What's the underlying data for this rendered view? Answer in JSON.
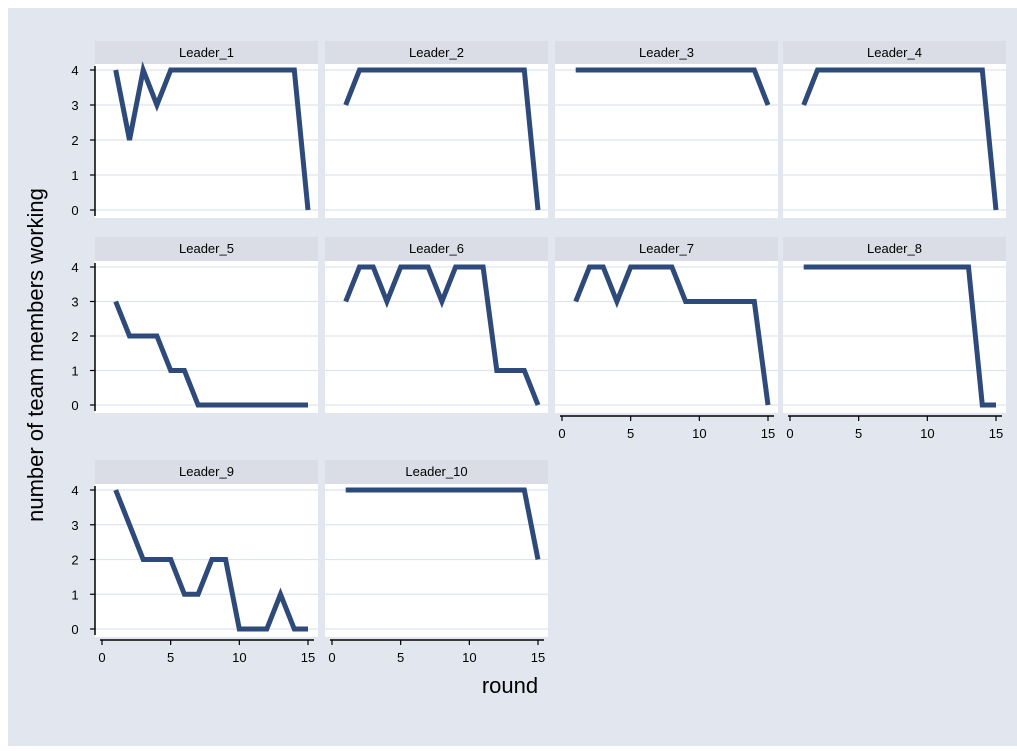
{
  "chart_data": {
    "type": "line",
    "layout": "small-multiples",
    "xlabel": "round",
    "ylabel": "number of team members working",
    "xlim": [
      0,
      15
    ],
    "ylim": [
      0,
      4
    ],
    "xticks": [
      0,
      5,
      10,
      15
    ],
    "yticks": [
      0,
      1,
      2,
      3,
      4
    ],
    "grid": true,
    "colors": {
      "outer_background": "#e1e6ef",
      "panel_background": "#ffffff",
      "strip_background": "#dadde5",
      "gridline": "#dfe4ec",
      "line": "#2e4a7a"
    },
    "panels": [
      {
        "title": "Leader_1",
        "x": [
          1,
          2,
          3,
          4,
          5,
          6,
          7,
          8,
          9,
          10,
          11,
          12,
          13,
          14,
          15
        ],
        "values": [
          4,
          2,
          4,
          3,
          4,
          4,
          4,
          4,
          4,
          4,
          4,
          4,
          4,
          4,
          0
        ]
      },
      {
        "title": "Leader_2",
        "x": [
          1,
          2,
          3,
          4,
          5,
          6,
          7,
          8,
          9,
          10,
          11,
          12,
          13,
          14,
          15
        ],
        "values": [
          3,
          4,
          4,
          4,
          4,
          4,
          4,
          4,
          4,
          4,
          4,
          4,
          4,
          4,
          0
        ]
      },
      {
        "title": "Leader_3",
        "x": [
          1,
          2,
          3,
          4,
          5,
          6,
          7,
          8,
          9,
          10,
          11,
          12,
          13,
          14,
          15
        ],
        "values": [
          4,
          4,
          4,
          4,
          4,
          4,
          4,
          4,
          4,
          4,
          4,
          4,
          4,
          4,
          3
        ]
      },
      {
        "title": "Leader_4",
        "x": [
          1,
          2,
          3,
          4,
          5,
          6,
          7,
          8,
          9,
          10,
          11,
          12,
          13,
          14,
          15
        ],
        "values": [
          3,
          4,
          4,
          4,
          4,
          4,
          4,
          4,
          4,
          4,
          4,
          4,
          4,
          4,
          0
        ]
      },
      {
        "title": "Leader_5",
        "x": [
          1,
          2,
          3,
          4,
          5,
          6,
          7,
          8,
          9,
          10,
          11,
          12,
          13,
          14,
          15
        ],
        "values": [
          3,
          2,
          2,
          2,
          1,
          1,
          0,
          0,
          0,
          0,
          0,
          0,
          0,
          0,
          0
        ]
      },
      {
        "title": "Leader_6",
        "x": [
          1,
          2,
          3,
          4,
          5,
          6,
          7,
          8,
          9,
          10,
          11,
          12,
          13,
          14,
          15
        ],
        "values": [
          3,
          4,
          4,
          3,
          4,
          4,
          4,
          3,
          4,
          4,
          4,
          1,
          1,
          1,
          0
        ]
      },
      {
        "title": "Leader_7",
        "x": [
          1,
          2,
          3,
          4,
          5,
          6,
          7,
          8,
          9,
          10,
          11,
          12,
          13,
          14,
          15
        ],
        "values": [
          3,
          4,
          4,
          3,
          4,
          4,
          4,
          4,
          3,
          3,
          3,
          3,
          3,
          3,
          0
        ]
      },
      {
        "title": "Leader_8",
        "x": [
          1,
          2,
          3,
          4,
          5,
          6,
          7,
          8,
          9,
          10,
          11,
          12,
          13,
          14,
          15
        ],
        "values": [
          4,
          4,
          4,
          4,
          4,
          4,
          4,
          4,
          4,
          4,
          4,
          4,
          4,
          0,
          0
        ]
      },
      {
        "title": "Leader_9",
        "x": [
          1,
          2,
          3,
          4,
          5,
          6,
          7,
          8,
          9,
          10,
          11,
          12,
          13,
          14,
          15
        ],
        "values": [
          4,
          3,
          2,
          2,
          2,
          1,
          1,
          2,
          2,
          0,
          0,
          0,
          1,
          0,
          0
        ]
      },
      {
        "title": "Leader_10",
        "x": [
          1,
          2,
          3,
          4,
          5,
          6,
          7,
          8,
          9,
          10,
          11,
          12,
          13,
          14,
          15
        ],
        "values": [
          4,
          4,
          4,
          4,
          4,
          4,
          4,
          4,
          4,
          4,
          4,
          4,
          4,
          4,
          2
        ]
      }
    ]
  }
}
